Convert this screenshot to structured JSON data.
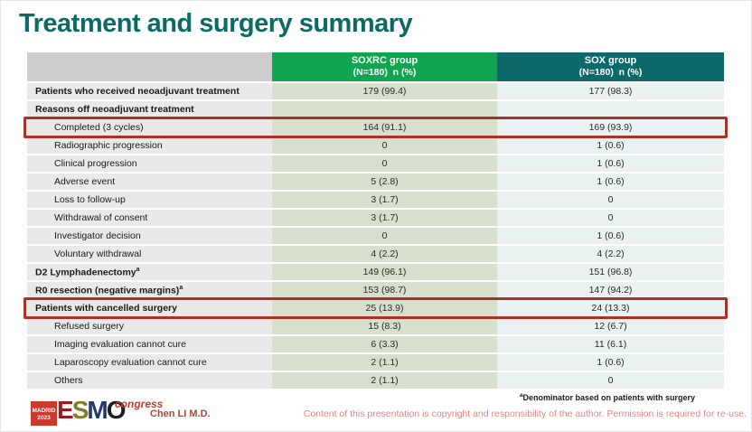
{
  "slide": {
    "title": "Treatment and surgery summary",
    "presenter": "Chen LI M.D.",
    "footnote": {
      "sup": "a",
      "text": "Denominator based on patients with surgery"
    },
    "copyright": "Content of this presentation is copyright and responsibility of the author. Permission is required for re-use."
  },
  "logo": {
    "location": "MADRID",
    "year": "2023",
    "letter_e": "E",
    "letter_s": "S",
    "letter_m": "M",
    "letter_o": "O",
    "congress": "congress"
  },
  "colors": {
    "title_teal": "#0c6a64",
    "header_gray": "#cdcdcd",
    "header_green": "#10a551",
    "header_teal": "#0e696b",
    "label_col_bg": "#e9e9e9",
    "soxrc_col_bg": "#d7e0cd",
    "sox_col_bg": "#e9f2f0",
    "highlight_red": "#a93128",
    "presenter_red": "#a34a3c",
    "copyright_pink": "#d98b84"
  },
  "table": {
    "header": {
      "soxrc": {
        "line1": "SOXRC group",
        "line2": "(N=180)  n (%)"
      },
      "sox": {
        "line1": "SOX group",
        "line2": "(N=180)  n (%)"
      }
    },
    "rows": [
      {
        "label": "Patients who received neoadjuvant treatment",
        "bold": true,
        "highlight": false,
        "soxrc": "179 (99.4)",
        "sox": "177 (98.3)"
      },
      {
        "label": "Reasons off neoadjuvant treatment",
        "bold": true,
        "highlight": false,
        "soxrc": "",
        "sox": ""
      },
      {
        "label": "Completed (3 cycles)",
        "bold": false,
        "highlight": true,
        "soxrc": "164 (91.1)",
        "sox": "169 (93.9)"
      },
      {
        "label": "Radiographic progression",
        "bold": false,
        "highlight": false,
        "soxrc": "0",
        "sox": "1 (0.6)"
      },
      {
        "label": "Clinical progression",
        "bold": false,
        "highlight": false,
        "soxrc": "0",
        "sox": "1 (0.6)"
      },
      {
        "label": "Adverse event",
        "bold": false,
        "highlight": false,
        "soxrc": "5 (2.8)",
        "sox": "1 (0.6)"
      },
      {
        "label": "Loss to follow-up",
        "bold": false,
        "highlight": false,
        "soxrc": "3 (1.7)",
        "sox": "0"
      },
      {
        "label": "Withdrawal of consent",
        "bold": false,
        "highlight": false,
        "soxrc": "3 (1.7)",
        "sox": "0"
      },
      {
        "label": "Investigator decision",
        "bold": false,
        "highlight": false,
        "soxrc": "0",
        "sox": "1 (0.6)"
      },
      {
        "label": "Voluntary withdrawal",
        "bold": false,
        "highlight": false,
        "soxrc": "4 (2.2)",
        "sox": "4 (2.2)"
      },
      {
        "label": "D2 Lymphadenectomy",
        "sup": "a",
        "bold": true,
        "highlight": false,
        "soxrc": "149 (96.1)",
        "sox": "151 (96.8)"
      },
      {
        "label": "R0 resection (negative margins)",
        "sup": "a",
        "bold": true,
        "highlight": false,
        "soxrc": "153 (98.7)",
        "sox": "147 (94.2)"
      },
      {
        "label": "Patients with cancelled surgery",
        "bold": true,
        "highlight": true,
        "soxrc": "25 (13.9)",
        "sox": "24 (13.3)"
      },
      {
        "label": "Refused surgery",
        "bold": false,
        "highlight": false,
        "soxrc": "15 (8.3)",
        "sox": "12 (6.7)"
      },
      {
        "label": "Imaging evaluation cannot cure",
        "bold": false,
        "highlight": false,
        "soxrc": "6 (3.3)",
        "sox": "11 (6.1)"
      },
      {
        "label": "Laparoscopy evaluation cannot cure",
        "bold": false,
        "highlight": false,
        "soxrc": "2 (1.1)",
        "sox": "1 (0.6)"
      },
      {
        "label": "Others",
        "bold": false,
        "highlight": false,
        "soxrc": "2 (1.1)",
        "sox": "0"
      }
    ]
  }
}
